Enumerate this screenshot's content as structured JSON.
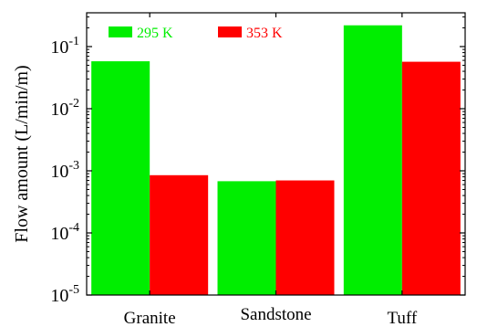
{
  "chart_data": {
    "type": "bar",
    "title": "",
    "xlabel": "",
    "ylabel": "Flow amount (L/min/m)",
    "yscale": "log",
    "ylim": [
      1e-05,
      0.35
    ],
    "grid": false,
    "legend_position": "top-left",
    "y_ticks": [
      {
        "base": "10",
        "exp": "-5"
      },
      {
        "base": "10",
        "exp": "-4"
      },
      {
        "base": "10",
        "exp": "-3"
      },
      {
        "base": "10",
        "exp": "-2"
      },
      {
        "base": "10",
        "exp": "-1"
      }
    ],
    "categories": [
      "Granite",
      "Sandstone",
      "Tuff"
    ],
    "series": [
      {
        "name": "295 K",
        "color": "#00ee00",
        "values": [
          0.058,
          0.00068,
          0.22
        ]
      },
      {
        "name": "353 K",
        "color": "#ff0000",
        "values": [
          0.00085,
          0.0007,
          0.057
        ]
      }
    ]
  }
}
